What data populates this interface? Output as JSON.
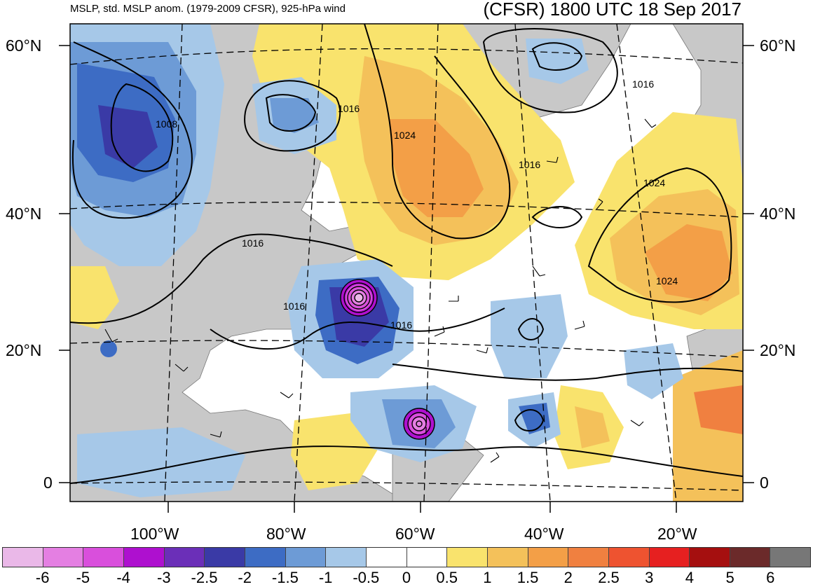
{
  "header": {
    "title_left": "MSLP, std. MSLP anom. (1979-2009 CFSR), 925-hPa wind",
    "title_right": "(CFSR) 1800 UTC 18 Sep 2017"
  },
  "map": {
    "lat_labels": [
      "60°N",
      "40°N",
      "20°N",
      "0"
    ],
    "lon_labels": [
      "100°W",
      "80°W",
      "60°W",
      "40°W",
      "20°W"
    ],
    "isobar_labels": [
      "1008",
      "1016",
      "1016",
      "1016",
      "1016",
      "1016",
      "1016",
      "1024",
      "1024",
      "1024"
    ],
    "colors": {
      "land": "#c8c8c8",
      "ocean": "#ffffff"
    }
  },
  "colorbar": {
    "labels": [
      "-6",
      "-5",
      "-4",
      "-3",
      "-2.5",
      "-2",
      "-1.5",
      "-1",
      "-0.5",
      "0",
      "0.5",
      "1",
      "1.5",
      "2",
      "2.5",
      "3",
      "4",
      "5",
      "6"
    ],
    "colors": [
      "#eab8e8",
      "#e47fe2",
      "#d94fdc",
      "#ae10cf",
      "#6b2fb8",
      "#3a3aa6",
      "#3d6cc4",
      "#6d9bd6",
      "#a6c8e8",
      "#ffffff",
      "#ffffff",
      "#f9e36d",
      "#f4c15a",
      "#f39f47",
      "#f08040",
      "#ee5330",
      "#e62020",
      "#a50f0f",
      "#6b2a2a",
      "#777777"
    ]
  }
}
